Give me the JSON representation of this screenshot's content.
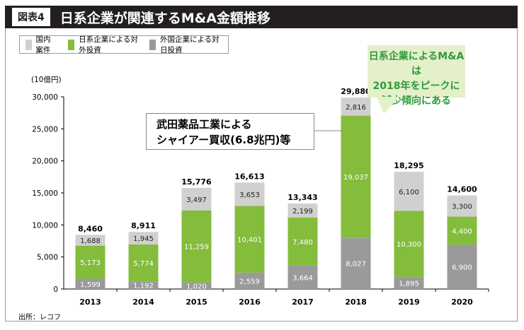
{
  "header": {
    "badge": "図表4",
    "title": "日系企業が関連するM&A金額推移"
  },
  "legend": [
    {
      "label": "国内案件",
      "color": "#d0d0ce"
    },
    {
      "label": "日系企業による対外投資",
      "color": "#84bc3c"
    },
    {
      "label": "外国企業による対日投資",
      "color": "#9a9a9b"
    }
  ],
  "callout": {
    "lines": [
      "日系企業によるM&Aは",
      "2018年をピークに",
      "減少傾向にある"
    ]
  },
  "note": {
    "lines": [
      "武田薬品工業による",
      "シャイアー買収(6.8兆円)等"
    ]
  },
  "source": "出所：レコフ",
  "chart_data": {
    "type": "bar",
    "stacked": true,
    "ylabel": "(10億円)",
    "ylim": [
      0,
      30000
    ],
    "yticks": [
      "0",
      "5,000",
      "10,000",
      "15,000",
      "20,000",
      "25,000",
      "30,000"
    ],
    "categories": [
      "2013",
      "2014",
      "2015",
      "2016",
      "2017",
      "2018",
      "2019",
      "2020"
    ],
    "series": [
      {
        "name": "外国企業による対日投資",
        "color": "#9a9a9b",
        "values": [
          1599,
          1192,
          1020,
          2559,
          3664,
          8027,
          1895,
          6900
        ],
        "labels": [
          "1,599",
          "1,192",
          "1,020",
          "2,559",
          "3,664",
          "8,027",
          "1,895",
          "6,900"
        ]
      },
      {
        "name": "日系企業による対外投資",
        "color": "#84bc3c",
        "values": [
          5173,
          5774,
          11259,
          10401,
          7480,
          19037,
          10300,
          4400
        ],
        "labels": [
          "5,173",
          "5,774",
          "11,259",
          "10,401",
          "7,480",
          "19,037",
          "10,300",
          "4,400"
        ]
      },
      {
        "name": "国内案件",
        "color": "#d0d0ce",
        "values": [
          1688,
          1945,
          3497,
          3653,
          2199,
          2816,
          6100,
          3300
        ],
        "labels": [
          "1,688",
          "1,945",
          "3,497",
          "3,653",
          "2,199",
          "2,816",
          "6,100",
          "3,300"
        ]
      }
    ],
    "totals": [
      "8,460",
      "8,911",
      "15,776",
      "16,613",
      "13,343",
      "29,880",
      "18,295",
      "14,600"
    ]
  }
}
